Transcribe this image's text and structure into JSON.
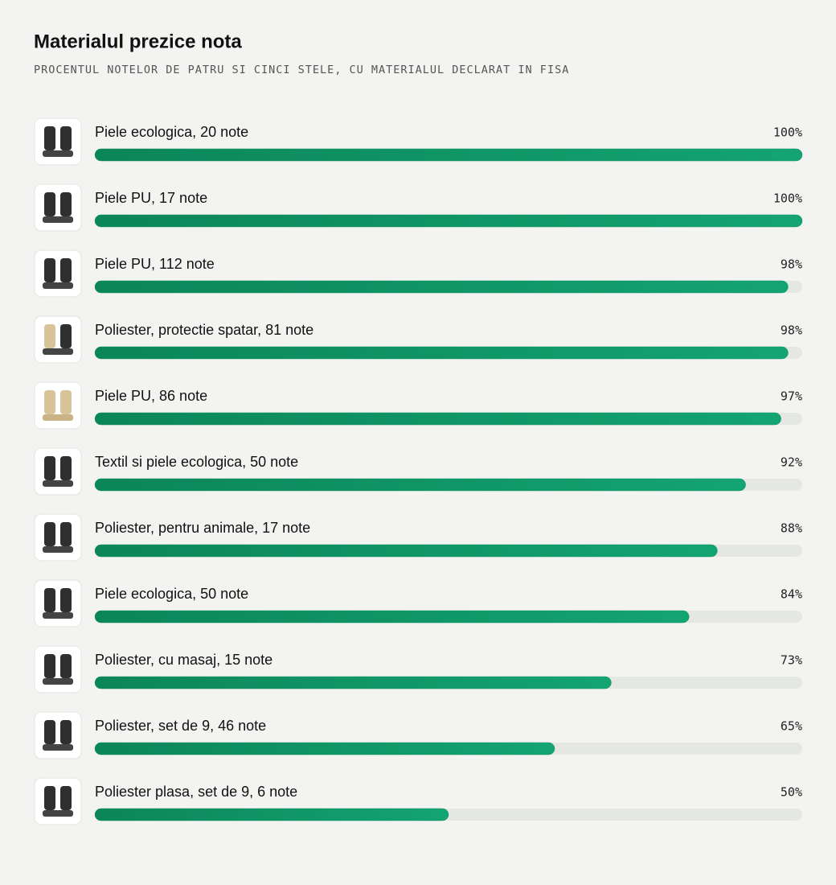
{
  "chart_data": {
    "type": "bar",
    "orientation": "horizontal",
    "title": "Materialul prezice nota",
    "subtitle": "PROCENTUL NOTELOR DE PATRU SI CINCI STELE, CU MATERIALUL DECLARAT IN FISA",
    "categories": [
      "Piele ecologica, 20 note",
      "Piele PU, 17 note",
      "Piele PU, 112 note",
      "Poliester, protectie spatar, 81 note",
      "Piele PU, 86 note",
      "Textil si piele ecologica, 50 note",
      "Poliester, pentru animale, 17 note",
      "Piele ecologica, 50 note",
      "Poliester, cu masaj, 15 note",
      "Poliester, set de 9, 46 note",
      "Poliester plasa, set de 9, 6 note"
    ],
    "values": [
      100,
      100,
      98,
      98,
      97,
      92,
      88,
      84,
      73,
      65,
      50
    ],
    "value_labels": [
      "100%",
      "100%",
      "98%",
      "98%",
      "97%",
      "92%",
      "88%",
      "84%",
      "73%",
      "65%",
      "50%"
    ],
    "xlim": [
      0,
      100
    ],
    "color": "#0f9464"
  }
}
